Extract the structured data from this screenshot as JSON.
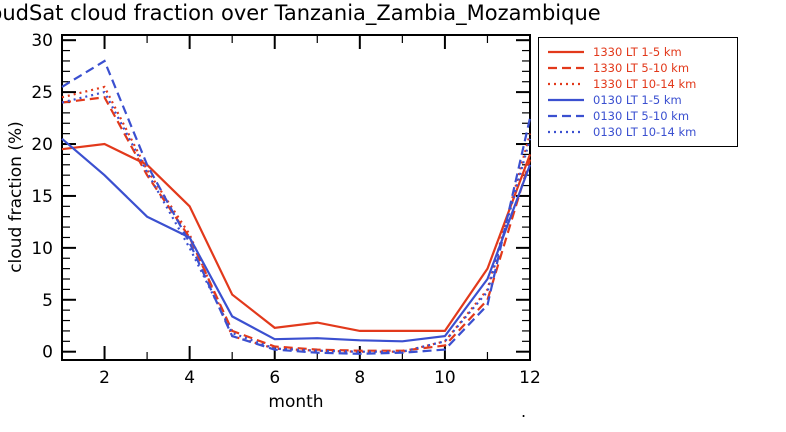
{
  "figure": {
    "stray_mark": "."
  },
  "chart_data": {
    "type": "line",
    "title": "CloudSat cloud fraction over Tanzania_Zambia_Mozambique",
    "xlabel": "month",
    "ylabel": "cloud fraction (%)",
    "x": [
      1,
      2,
      3,
      4,
      5,
      6,
      7,
      8,
      9,
      10,
      11,
      12
    ],
    "xlim": [
      1,
      12
    ],
    "ylim_display": [
      -0.8,
      30.5
    ],
    "xticks": [
      2,
      4,
      6,
      8,
      10,
      12
    ],
    "yticks": [
      0,
      5,
      10,
      15,
      20,
      25,
      30
    ],
    "grid": false,
    "legend_position": "top-right",
    "colors": {
      "afternoon_1330": "#e2391b",
      "night_0130": "#3b50d0"
    },
    "series": [
      {
        "name": "1330 LT 1-5 km",
        "color": "#e2391b",
        "style": "solid",
        "values": [
          19.5,
          20.0,
          18.0,
          14.0,
          5.5,
          2.3,
          2.8,
          2.0,
          2.0,
          2.0,
          8.0,
          19.0
        ]
      },
      {
        "name": "1330 LT 5-10 km",
        "color": "#e2391b",
        "style": "dashed",
        "values": [
          24.0,
          24.5,
          17.0,
          11.0,
          2.0,
          0.5,
          0.2,
          0.1,
          0.1,
          0.6,
          5.0,
          18.5
        ]
      },
      {
        "name": "1330 LT 10-14 km",
        "color": "#e2391b",
        "style": "dotted",
        "values": [
          24.5,
          25.5,
          17.5,
          11.3,
          1.5,
          0.3,
          0.1,
          0.0,
          0.0,
          1.0,
          6.0,
          21.0
        ]
      },
      {
        "name": "0130 LT 1-5 km",
        "color": "#3b50d0",
        "style": "solid",
        "values": [
          20.5,
          17.0,
          13.0,
          11.0,
          3.4,
          1.2,
          1.3,
          1.1,
          1.0,
          1.5,
          7.0,
          18.0
        ]
      },
      {
        "name": "0130 LT 5-10 km",
        "color": "#3b50d0",
        "style": "dashed",
        "values": [
          25.5,
          28.0,
          18.0,
          10.5,
          1.5,
          0.2,
          -0.1,
          -0.2,
          -0.1,
          0.2,
          4.5,
          22.5
        ]
      },
      {
        "name": "0130 LT 10-14 km",
        "color": "#3b50d0",
        "style": "dotted",
        "values": [
          24.0,
          25.0,
          17.3,
          10.0,
          1.8,
          0.3,
          0.1,
          0.0,
          0.0,
          1.0,
          5.8,
          20.5
        ]
      }
    ]
  }
}
